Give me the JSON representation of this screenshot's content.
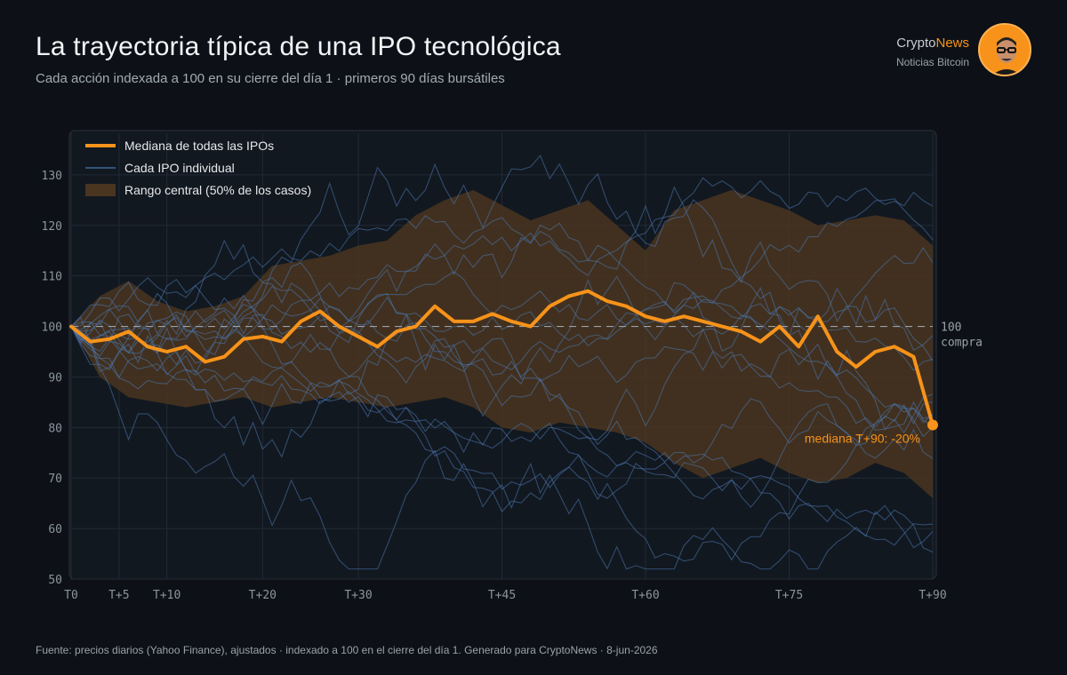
{
  "header": {
    "title": "La trayectoria típica de una IPO tecnológica",
    "subtitle": "Cada acción indexada a 100 en su cierre del día 1 · primeros 90 días bursátiles"
  },
  "brand": {
    "name_prefix": "Crypto",
    "name_accent": "News",
    "tagline": "Noticias Bitcoin",
    "accent_color": "#f7931a"
  },
  "footer": {
    "text": "Fuente: precios diarios (Yahoo Finance), ajustados · indexado a 100 en el cierre del día 1.  Generado para CryptoNews · 8-jun-2026"
  },
  "chart_data": {
    "type": "line",
    "xlabel": "",
    "ylabel": "",
    "xlim": [
      0,
      90
    ],
    "ylim": [
      50,
      140
    ],
    "x_ticks": [
      {
        "x": 0,
        "label": "T0"
      },
      {
        "x": 5,
        "label": "T+5"
      },
      {
        "x": 10,
        "label": "T+10"
      },
      {
        "x": 20,
        "label": "T+20"
      },
      {
        "x": 30,
        "label": "T+30"
      },
      {
        "x": 45,
        "label": "T+45"
      },
      {
        "x": 60,
        "label": "T+60"
      },
      {
        "x": 75,
        "label": "T+75"
      },
      {
        "x": 90,
        "label": "T+90"
      }
    ],
    "y_ticks": [
      50,
      60,
      70,
      80,
      90,
      100,
      110,
      120,
      130
    ],
    "grid": true,
    "legend_position": "top-left",
    "legend": [
      {
        "label": "Mediana de todas las IPOs",
        "kind": "line",
        "color": "#f7931a"
      },
      {
        "label": "Cada IPO individual",
        "kind": "thin-line",
        "color": "#4a78b0"
      },
      {
        "label": "Rango central (50% de los casos)",
        "kind": "band",
        "color": "#4a3520"
      }
    ],
    "reference_line": {
      "y": 100,
      "label_line1": "100",
      "label_line2": "compra"
    },
    "median_annotation": "mediana T+90: -20%",
    "colors": {
      "median": "#f7931a",
      "individual": "#4a78b0",
      "band": "#4a3520",
      "grid": "#222a35",
      "axis_text": "#8b949e"
    },
    "median": {
      "x": [
        0,
        2,
        4,
        6,
        8,
        10,
        12,
        14,
        16,
        18,
        20,
        22,
        24,
        26,
        28,
        30,
        32,
        34,
        36,
        38,
        40,
        42,
        44,
        46,
        48,
        50,
        52,
        54,
        56,
        58,
        60,
        62,
        64,
        66,
        68,
        70,
        72,
        74,
        76,
        78,
        80,
        82,
        84,
        86,
        88,
        90
      ],
      "values": [
        100,
        97,
        97.5,
        99,
        96,
        95,
        96,
        93,
        94,
        97.5,
        98,
        97,
        101,
        103,
        100,
        98,
        96,
        99,
        100,
        104,
        101,
        101,
        102.5,
        101,
        100,
        104,
        106,
        107,
        105,
        104,
        102,
        101,
        102,
        101,
        100,
        99,
        97,
        100,
        96,
        102,
        95,
        92,
        95,
        96,
        94,
        80.5
      ]
    },
    "band": {
      "x": [
        0,
        3,
        6,
        9,
        12,
        15,
        18,
        21,
        24,
        27,
        30,
        33,
        36,
        39,
        42,
        45,
        48,
        51,
        54,
        57,
        60,
        63,
        66,
        69,
        72,
        75,
        78,
        81,
        84,
        87,
        90
      ],
      "upper": [
        100,
        106,
        109,
        105,
        103,
        104,
        106,
        112,
        113,
        114,
        116,
        117,
        122,
        125,
        127,
        124,
        121,
        123,
        125,
        120,
        115,
        123,
        125,
        127,
        125,
        123,
        120,
        121,
        122,
        121,
        116
      ],
      "lower": [
        100,
        90,
        86,
        85,
        84,
        85,
        86,
        84,
        85,
        86,
        85,
        84,
        85,
        86,
        84,
        80,
        79,
        81,
        80,
        79,
        77,
        73,
        70,
        72,
        74,
        71,
        69,
        70,
        73,
        71,
        66
      ]
    }
  }
}
